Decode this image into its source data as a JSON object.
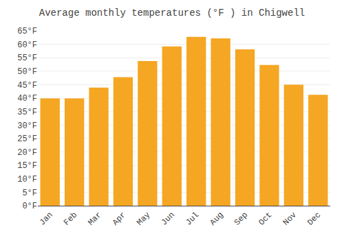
{
  "chart_data": {
    "type": "bar",
    "title": "Average monthly temperatures (°F ) in Chigwell",
    "categories": [
      "Jan",
      "Feb",
      "Mar",
      "Apr",
      "May",
      "Jun",
      "Jul",
      "Aug",
      "Sep",
      "Oct",
      "Nov",
      "Dec"
    ],
    "values": [
      39.9,
      39.9,
      43.9,
      47.8,
      53.8,
      59.2,
      62.8,
      62.2,
      58.1,
      52.3,
      45.0,
      41.2
    ],
    "color": "#F5A623",
    "ylim": [
      0,
      65
    ],
    "yticks": [
      {
        "value": 0,
        "label": "0°F"
      },
      {
        "value": 5,
        "label": "5°F"
      },
      {
        "value": 10,
        "label": "10°F"
      },
      {
        "value": 15,
        "label": "15°F"
      },
      {
        "value": 20,
        "label": "20°F"
      },
      {
        "value": 25,
        "label": "25°F"
      },
      {
        "value": 30,
        "label": "30°F"
      },
      {
        "value": 35,
        "label": "35°F"
      },
      {
        "value": 40,
        "label": "40°F"
      },
      {
        "value": 45,
        "label": "45°F"
      },
      {
        "value": 50,
        "label": "50°F"
      },
      {
        "value": 55,
        "label": "55°F"
      },
      {
        "value": 60,
        "label": "60°F"
      },
      {
        "value": 65,
        "label": "65°F"
      }
    ],
    "grid": true
  }
}
